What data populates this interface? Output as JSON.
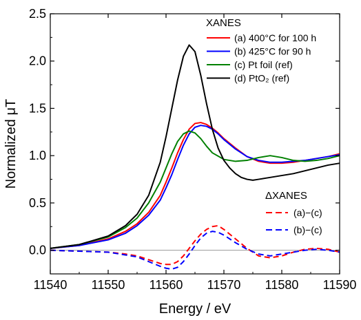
{
  "chart_data": {
    "type": "line",
    "xlabel": "Energy / eV",
    "ylabel": "Normalized μT",
    "xlim": [
      11540,
      11590
    ],
    "ylim": [
      -0.25,
      2.5
    ],
    "xticks": [
      11540,
      11550,
      11560,
      11570,
      11580,
      11590
    ],
    "xtick_labels": [
      "11540",
      "11550",
      "11560",
      "11570",
      "11580",
      "11590"
    ],
    "yticks": [
      0.0,
      0.5,
      1.0,
      1.5,
      2.0,
      2.5
    ],
    "ytick_labels": [
      "0.0",
      "0.5",
      "1.0",
      "1.5",
      "2.0",
      "2.5"
    ],
    "grid": false,
    "zero_line": true,
    "legends": [
      {
        "title": "XANES",
        "placement": "top-right",
        "entries": [
          {
            "series": 0,
            "label": "(a) 400°C for 100 h"
          },
          {
            "series": 1,
            "label": "(b) 425°C for 90 h"
          },
          {
            "series": 2,
            "label": "(c) Pt foil (ref)"
          },
          {
            "series": 3,
            "label": "(d) PtO₂ (ref)"
          }
        ]
      },
      {
        "title": "ΔXANES",
        "placement": "bottom-right",
        "entries": [
          {
            "series": 4,
            "label": "(a)−(c)"
          },
          {
            "series": 5,
            "label": "(b)−(c)"
          }
        ]
      }
    ],
    "series": [
      {
        "name": "(a) 400°C for 100 h",
        "color": "#ff0000",
        "style": "solid",
        "x": [
          11540,
          11545,
          11550,
          11553,
          11555,
          11557,
          11559,
          11560,
          11561,
          11562,
          11563,
          11564,
          11565,
          11566,
          11567,
          11568,
          11569,
          11570,
          11572,
          11574,
          11576,
          11578,
          11580,
          11582,
          11584,
          11586,
          11588,
          11590
        ],
        "y": [
          0.02,
          0.05,
          0.12,
          0.2,
          0.28,
          0.4,
          0.58,
          0.72,
          0.87,
          1.03,
          1.17,
          1.28,
          1.34,
          1.35,
          1.33,
          1.29,
          1.24,
          1.18,
          1.08,
          0.99,
          0.94,
          0.92,
          0.92,
          0.93,
          0.95,
          0.97,
          0.99,
          1.02
        ]
      },
      {
        "name": "(b) 425°C for 90 h",
        "color": "#0000ff",
        "style": "solid",
        "x": [
          11540,
          11545,
          11550,
          11553,
          11555,
          11557,
          11559,
          11560,
          11561,
          11562,
          11563,
          11564,
          11565,
          11566,
          11567,
          11568,
          11569,
          11570,
          11572,
          11574,
          11576,
          11578,
          11580,
          11582,
          11584,
          11586,
          11588,
          11590
        ],
        "y": [
          0.02,
          0.05,
          0.11,
          0.18,
          0.26,
          0.37,
          0.53,
          0.66,
          0.8,
          0.96,
          1.11,
          1.23,
          1.3,
          1.32,
          1.31,
          1.28,
          1.23,
          1.17,
          1.07,
          0.99,
          0.95,
          0.93,
          0.93,
          0.94,
          0.95,
          0.97,
          0.99,
          1.01
        ]
      },
      {
        "name": "(c) Pt foil (ref)",
        "color": "#008000",
        "style": "solid",
        "x": [
          11540,
          11545,
          11550,
          11553,
          11555,
          11557,
          11559,
          11560,
          11561,
          11562,
          11563,
          11564,
          11565,
          11566,
          11567,
          11568,
          11570,
          11572,
          11574,
          11576,
          11578,
          11580,
          11582,
          11584,
          11586,
          11588,
          11590
        ],
        "y": [
          0.02,
          0.06,
          0.14,
          0.24,
          0.34,
          0.5,
          0.72,
          0.87,
          1.02,
          1.15,
          1.23,
          1.26,
          1.24,
          1.18,
          1.1,
          1.03,
          0.96,
          0.94,
          0.95,
          0.98,
          1.0,
          0.98,
          0.95,
          0.94,
          0.95,
          0.97,
          1.0
        ]
      },
      {
        "name": "(d) PtO₂ (ref)",
        "color": "#000000",
        "style": "solid",
        "x": [
          11540,
          11545,
          11550,
          11553,
          11555,
          11557,
          11559,
          11560,
          11561,
          11562,
          11563,
          11564,
          11565,
          11566,
          11567,
          11568,
          11569,
          11570,
          11571,
          11572,
          11573,
          11574,
          11575,
          11576,
          11578,
          11580,
          11582,
          11584,
          11586,
          11588,
          11590
        ],
        "y": [
          0.02,
          0.06,
          0.15,
          0.26,
          0.38,
          0.58,
          0.93,
          1.2,
          1.5,
          1.8,
          2.05,
          2.17,
          2.1,
          1.85,
          1.55,
          1.28,
          1.08,
          0.95,
          0.87,
          0.81,
          0.77,
          0.75,
          0.74,
          0.75,
          0.77,
          0.79,
          0.81,
          0.84,
          0.87,
          0.9,
          0.92
        ]
      },
      {
        "name": "(a)−(c)",
        "color": "#ff0000",
        "style": "dashed",
        "x": [
          11540,
          11545,
          11550,
          11553,
          11555,
          11557,
          11559,
          11560,
          11561,
          11562,
          11563,
          11564,
          11565,
          11566,
          11567,
          11568,
          11569,
          11570,
          11572,
          11574,
          11576,
          11578,
          11580,
          11582,
          11584,
          11586,
          11588,
          11590
        ],
        "y": [
          0.0,
          -0.01,
          -0.02,
          -0.04,
          -0.06,
          -0.1,
          -0.14,
          -0.15,
          -0.15,
          -0.12,
          -0.06,
          0.02,
          0.1,
          0.17,
          0.22,
          0.25,
          0.26,
          0.22,
          0.12,
          0.02,
          -0.06,
          -0.08,
          -0.06,
          -0.02,
          0.01,
          0.02,
          0.01,
          -0.02
        ]
      },
      {
        "name": "(b)−(c)",
        "color": "#0000ff",
        "style": "dashed",
        "x": [
          11540,
          11545,
          11550,
          11553,
          11555,
          11557,
          11559,
          11560,
          11561,
          11562,
          11563,
          11564,
          11565,
          11566,
          11567,
          11568,
          11569,
          11570,
          11572,
          11574,
          11576,
          11578,
          11580,
          11582,
          11584,
          11586,
          11588,
          11590
        ],
        "y": [
          0.0,
          -0.01,
          -0.02,
          -0.05,
          -0.07,
          -0.12,
          -0.17,
          -0.19,
          -0.2,
          -0.18,
          -0.12,
          -0.04,
          0.05,
          0.13,
          0.18,
          0.2,
          0.19,
          0.16,
          0.08,
          0.01,
          -0.04,
          -0.06,
          -0.04,
          -0.02,
          0.0,
          0.01,
          0.0,
          -0.02
        ]
      }
    ]
  }
}
